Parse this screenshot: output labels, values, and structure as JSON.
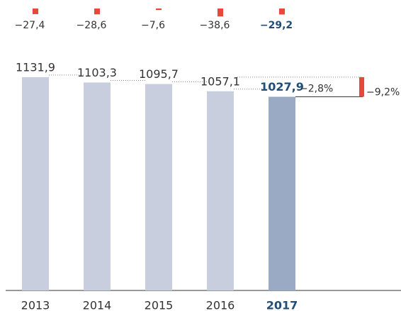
{
  "chart_data": {
    "type": "bar",
    "categories": [
      "2013",
      "2014",
      "2015",
      "2016",
      "2017"
    ],
    "values": [
      1131.9,
      1103.3,
      1095.7,
      1057.1,
      1027.9
    ],
    "value_labels": [
      "1131,9",
      "1103,3",
      "1095,7",
      "1057,1",
      "1027,9"
    ],
    "changes": [
      -27.4,
      -28.6,
      -7.6,
      -38.6,
      -29.2
    ],
    "change_labels": [
      "−27,4",
      "−28,6",
      "−7,6",
      "−38,6",
      "−29,2"
    ],
    "color": "#c8cedd",
    "highlight_index": 4,
    "highlight_color": "#9aa9c4",
    "highlight_text_color": "#1f4e79",
    "change_color": "#e8473a",
    "annotations": [
      {
        "label": "−2,8%",
        "value": -2.8
      },
      {
        "label": "−9,2%",
        "value": -9.2
      }
    ]
  }
}
